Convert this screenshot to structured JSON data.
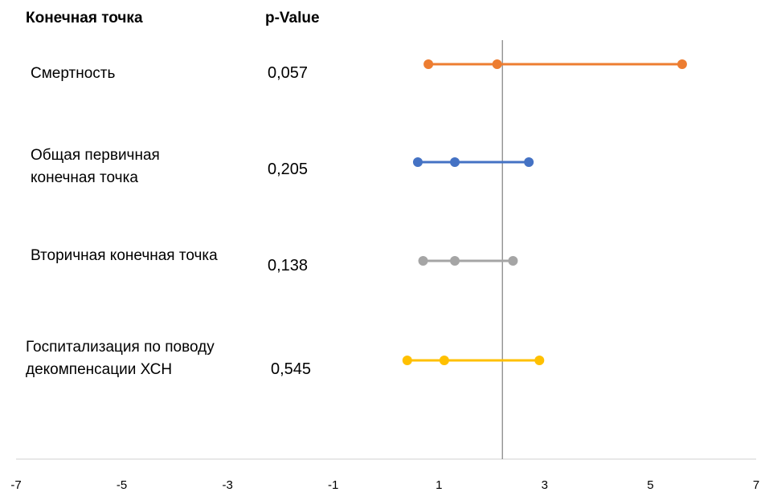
{
  "headers": {
    "endpoint": "Конечная точка",
    "pvalue": "p-Value"
  },
  "chart_data": {
    "type": "scatter",
    "title": "",
    "xlabel": "",
    "ylabel": "",
    "xlim": [
      -7,
      7
    ],
    "xticks": [
      "-7",
      "-5",
      "-3",
      "-1",
      "1",
      "3",
      "5",
      "7"
    ],
    "reference_line_x": 2.2,
    "grid": false,
    "rows": [
      {
        "label": "Смертность",
        "p_value": "0,057",
        "lower": 0.8,
        "estimate": 2.1,
        "upper": 5.6,
        "color": "#ED7D31"
      },
      {
        "label": "Общая первичная конечная точка",
        "p_value": "0,205",
        "lower": 0.6,
        "estimate": 1.3,
        "upper": 2.7,
        "color": "#4472C4"
      },
      {
        "label": "Вторичная конечная точка",
        "p_value": "0,138",
        "lower": 0.7,
        "estimate": 1.3,
        "upper": 2.4,
        "color": "#A5A5A5"
      },
      {
        "label": "Госпитализация по поводу декомпенсации ХСН",
        "p_value": "0,545",
        "lower": 0.4,
        "estimate": 1.1,
        "upper": 2.9,
        "color": "#FFC000"
      }
    ]
  }
}
